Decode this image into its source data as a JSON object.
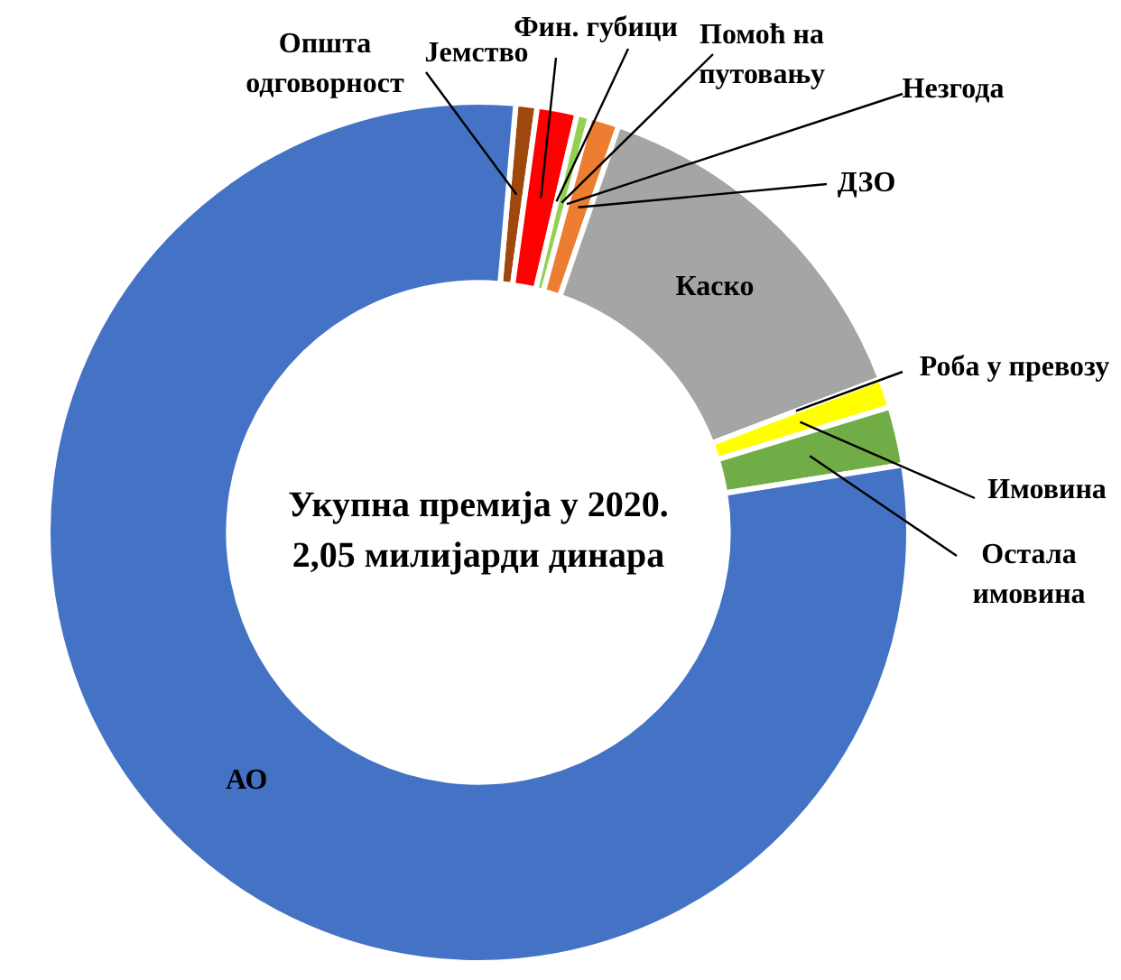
{
  "chart_data": {
    "type": "donut",
    "title": "Укупна премија у 2020.",
    "subtitle": "2,05 милијарди динара",
    "categories": [
      "Општа одговорност",
      "Јемство",
      "Фин. губици",
      "Помоћ на путовању",
      "Незгода",
      "ДЗО",
      "Каско",
      "Роба у превозу",
      "Имовина",
      "Остала имовина",
      "АО"
    ],
    "values": [
      0.8,
      1.5,
      null,
      0.5,
      null,
      1.1,
      13.9,
      null,
      1.1,
      2.2,
      78.9
    ],
    "colors": [
      "#9e480e",
      "#ff0000",
      "#c00000",
      "#92d050",
      "#ed7d31",
      "#ed7d31",
      "#a5a5a5",
      "#ffc000",
      "#ffff00",
      "#70ad47",
      "#4472c4"
    ],
    "legend": false
  }
}
